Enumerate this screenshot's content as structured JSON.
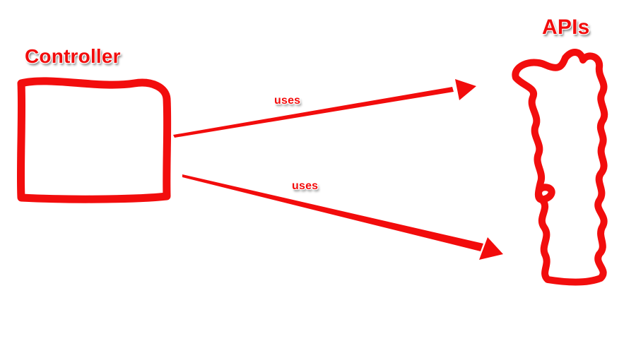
{
  "diagram": {
    "nodes": {
      "controller": {
        "label": "Controller"
      },
      "apis": {
        "label": "APIs"
      }
    },
    "edges": [
      {
        "label": "uses",
        "from": "Controller",
        "to": "APIs"
      },
      {
        "label": "uses",
        "from": "Controller",
        "to": "APIs"
      }
    ]
  },
  "colors": {
    "stroke": "#f20c0c",
    "background": "#ffffff"
  }
}
